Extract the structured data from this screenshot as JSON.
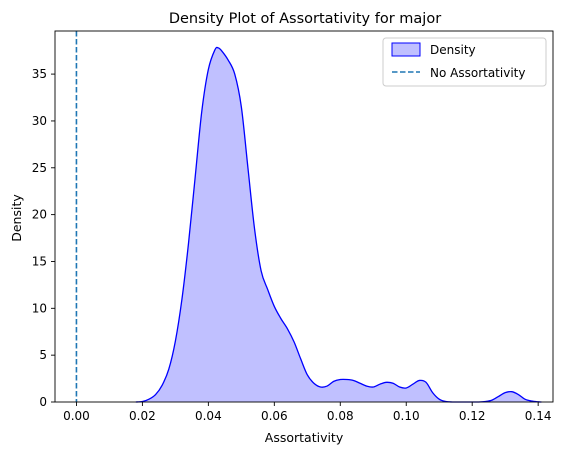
{
  "chart_data": {
    "type": "area",
    "title": "Density Plot of Assortativity for major",
    "xlabel": "Assortativity",
    "ylabel": "Density",
    "xlim": [
      -0.0065,
      0.1445
    ],
    "ylim": [
      0,
      39.6
    ],
    "xticks": [
      0.0,
      0.02,
      0.04,
      0.06,
      0.08,
      0.1,
      0.12,
      0.14
    ],
    "xtick_labels": [
      "0.00",
      "0.02",
      "0.04",
      "0.06",
      "0.08",
      "0.10",
      "0.12",
      "0.14"
    ],
    "yticks": [
      0,
      5,
      10,
      15,
      20,
      25,
      30,
      35
    ],
    "ytick_labels": [
      "0",
      "5",
      "10",
      "15",
      "20",
      "25",
      "30",
      "35"
    ],
    "grid": false,
    "legend": {
      "placement": "top-right",
      "entries": [
        "Density",
        "No Assortativity"
      ]
    },
    "series": [
      {
        "name": "Density",
        "color": "#0000ff",
        "fill": "#c0c0ff",
        "x": [
          0.018,
          0.02,
          0.022,
          0.024,
          0.026,
          0.028,
          0.03,
          0.032,
          0.034,
          0.036,
          0.038,
          0.04,
          0.042,
          0.043,
          0.044,
          0.046,
          0.048,
          0.05,
          0.052,
          0.054,
          0.056,
          0.058,
          0.06,
          0.062,
          0.064,
          0.066,
          0.068,
          0.07,
          0.072,
          0.074,
          0.076,
          0.078,
          0.08,
          0.082,
          0.084,
          0.086,
          0.088,
          0.09,
          0.092,
          0.094,
          0.096,
          0.098,
          0.1,
          0.102,
          0.104,
          0.106,
          0.108,
          0.11,
          0.112,
          0.114,
          0.116,
          0.118,
          0.12,
          0.122,
          0.124,
          0.126,
          0.128,
          0.13,
          0.132,
          0.134,
          0.136,
          0.138,
          0.14,
          0.141
        ],
        "y": [
          0.0,
          0.05,
          0.3,
          0.8,
          1.8,
          3.5,
          6.5,
          11.0,
          17.0,
          24.0,
          31.0,
          35.5,
          37.6,
          37.8,
          37.5,
          36.5,
          35.0,
          31.5,
          25.0,
          18.5,
          14.0,
          12.0,
          10.2,
          8.9,
          7.8,
          6.4,
          4.6,
          2.9,
          2.0,
          1.6,
          1.7,
          2.2,
          2.4,
          2.4,
          2.3,
          2.0,
          1.7,
          1.6,
          1.9,
          2.1,
          2.0,
          1.6,
          1.5,
          1.9,
          2.3,
          2.1,
          1.0,
          0.3,
          0.05,
          0.0,
          0.0,
          0.0,
          0.0,
          0.0,
          0.05,
          0.2,
          0.6,
          1.0,
          1.1,
          0.8,
          0.3,
          0.1,
          0.02,
          0.0
        ]
      },
      {
        "name": "No Assortativity",
        "type": "vline",
        "x_value": 0.0,
        "color": "#1f77b4",
        "style": "dashed"
      }
    ]
  }
}
